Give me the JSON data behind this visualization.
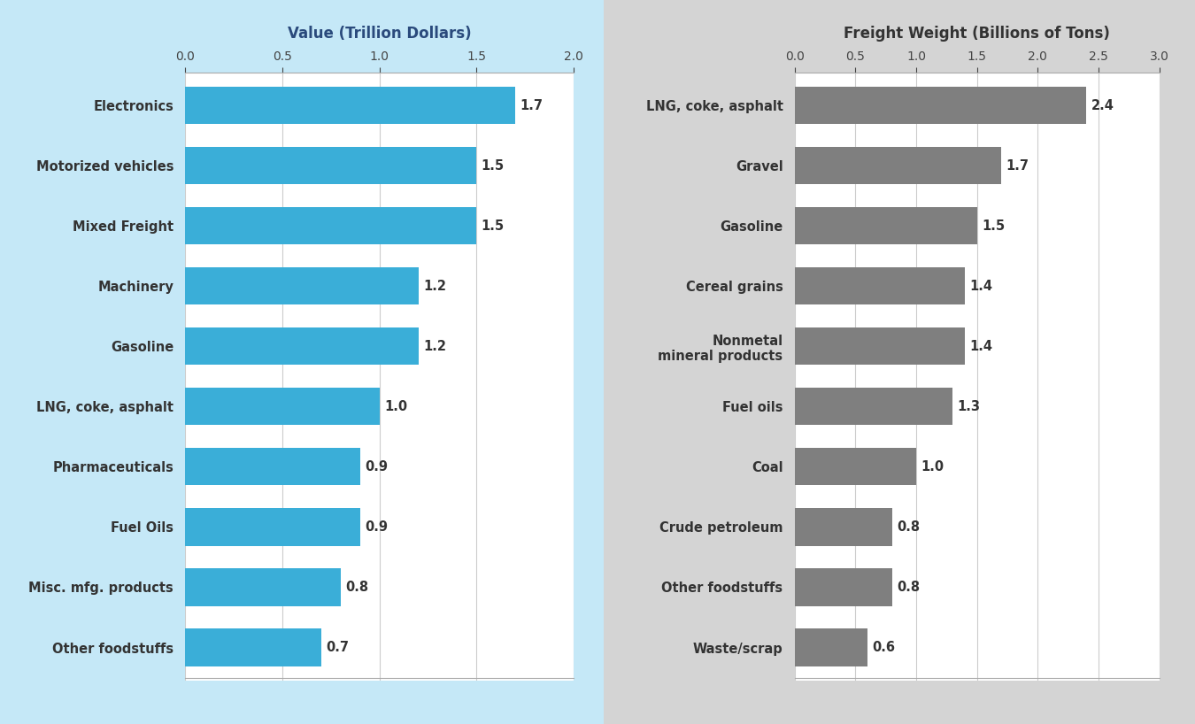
{
  "left_categories": [
    "Electronics",
    "Motorized vehicles",
    "Mixed Freight",
    "Machinery",
    "Gasoline",
    "LNG, coke, asphalt",
    "Pharmaceuticals",
    "Fuel Oils",
    "Misc. mfg. products",
    "Other foodstuffs"
  ],
  "left_values": [
    1.7,
    1.5,
    1.5,
    1.2,
    1.2,
    1.0,
    0.9,
    0.9,
    0.8,
    0.7
  ],
  "left_title": "Value (Trillion Dollars)",
  "left_xlim": [
    0,
    2.0
  ],
  "left_xticks": [
    0.0,
    0.5,
    1.0,
    1.5,
    2.0
  ],
  "left_bar_color": "#3aaed8",
  "left_bg_color": "#c5e8f7",
  "left_plot_bg": "white",
  "right_categories": [
    "LNG, coke, asphalt",
    "Gravel",
    "Gasoline",
    "Cereal grains",
    "Nonmetal\nmineral products",
    "Fuel oils",
    "Coal",
    "Crude petroleum",
    "Other foodstuffs",
    "Waste/scrap"
  ],
  "right_values": [
    2.4,
    1.7,
    1.5,
    1.4,
    1.4,
    1.3,
    1.0,
    0.8,
    0.8,
    0.6
  ],
  "right_title": "Freight Weight (Billions of Tons)",
  "right_xlim": [
    0,
    3.0
  ],
  "right_xticks": [
    0.0,
    0.5,
    1.0,
    1.5,
    2.0,
    2.5,
    3.0
  ],
  "right_bar_color": "#7f7f7f",
  "right_bg_color": "#d4d4d4",
  "right_plot_bg": "white",
  "label_fontsize": 10.5,
  "value_fontsize": 10.5,
  "title_fontsize": 12,
  "tick_fontsize": 10
}
